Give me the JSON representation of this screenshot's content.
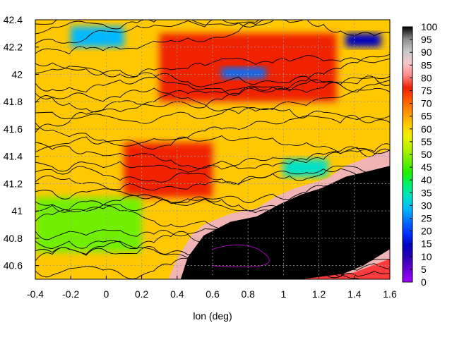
{
  "chart_data": {
    "type": "heatmap",
    "title": "",
    "xlabel": "lon (deg)",
    "ylabel": "",
    "xlim": [
      -0.4,
      1.6
    ],
    "ylim": [
      40.5,
      42.4
    ],
    "x_ticks": [
      "-0.4",
      "-0.2",
      "0",
      "0.2",
      "0.4",
      "0.6",
      "0.8",
      "1",
      "1.2",
      "1.4",
      "1.6"
    ],
    "y_ticks": [
      "40.6",
      "40.8",
      "41",
      "41.2",
      "41.4",
      "41.6",
      "41.8",
      "42",
      "42.2",
      "42.4"
    ],
    "colorbar": {
      "min": 0,
      "max": 100,
      "ticks": [
        "0",
        "5",
        "10",
        "15",
        "20",
        "25",
        "30",
        "35",
        "40",
        "45",
        "50",
        "55",
        "60",
        "65",
        "70",
        "75",
        "80",
        "85",
        "90",
        "95",
        "100"
      ],
      "palette": [
        "#a000ff",
        "#6a00d8",
        "#2d00b4",
        "#0000c0",
        "#0030ff",
        "#0070ff",
        "#00b8ff",
        "#00e0c8",
        "#00f070",
        "#20f000",
        "#70f000",
        "#b8f000",
        "#f0f000",
        "#ffc800",
        "#ff9000",
        "#ff5a00",
        "#f02000",
        "#ff8a8a",
        "#f4c8c8",
        "#c8c8c8",
        "#8c8c8c",
        "#000000"
      ]
    },
    "grid": true,
    "contours": true,
    "sea_region_value": 98,
    "value_regions": [
      {
        "lon": [
          -0.4,
          1.6
        ],
        "lat": [
          40.5,
          42.4
        ],
        "value": 62
      },
      {
        "lon": [
          0.1,
          0.6
        ],
        "lat": [
          41.1,
          41.5
        ],
        "value": 78
      },
      {
        "lon": [
          0.3,
          1.3
        ],
        "lat": [
          41.8,
          42.3
        ],
        "value": 76
      },
      {
        "lon": [
          -0.4,
          0.2
        ],
        "lat": [
          40.7,
          41.1
        ],
        "value": 48
      },
      {
        "lon": [
          -0.2,
          0.1
        ],
        "lat": [
          42.2,
          42.35
        ],
        "value": 28
      },
      {
        "lon": [
          0.65,
          0.9
        ],
        "lat": [
          41.97,
          42.05
        ],
        "value": 22
      },
      {
        "lon": [
          1.35,
          1.55
        ],
        "lat": [
          42.2,
          42.3
        ],
        "value": 12
      },
      {
        "lon": [
          1.0,
          1.25
        ],
        "lat": [
          41.25,
          41.38
        ],
        "value": 35
      }
    ]
  }
}
